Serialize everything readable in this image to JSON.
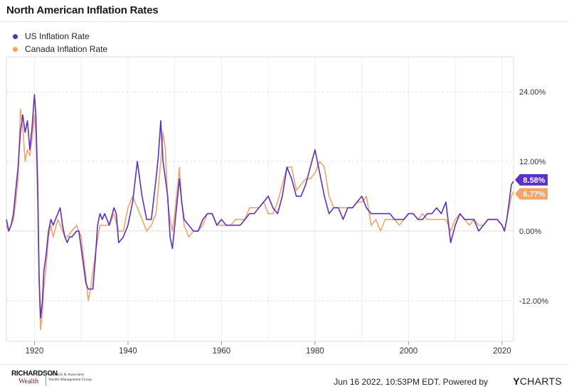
{
  "header": {
    "title": "North American Inflation Rates"
  },
  "colors": {
    "us": "#5b2fc9",
    "canada": "#f4a469"
  },
  "chart_data": {
    "type": "line",
    "title": "North American Inflation Rates",
    "xlabel": "",
    "ylabel": "",
    "xlim": [
      1914,
      2022.45
    ],
    "ylim": [
      -19,
      30
    ],
    "x_ticks": [
      "1920",
      "1940",
      "1960",
      "1980",
      "2000",
      "2020"
    ],
    "y_ticks": [
      "24.00%",
      "12.00%",
      "0.00%",
      "-12.00%"
    ],
    "legend_position": "top-left",
    "grid": true,
    "end_labels": [
      "8.58%",
      "6.77%"
    ],
    "series": [
      {
        "name": "US Inflation Rate",
        "color": "#5b2fc9",
        "points": [
          [
            1914,
            2
          ],
          [
            1914.5,
            0
          ],
          [
            1915,
            1
          ],
          [
            1915.5,
            3
          ],
          [
            1916,
            7
          ],
          [
            1916.5,
            11
          ],
          [
            1917,
            17
          ],
          [
            1917.5,
            20
          ],
          [
            1918,
            17
          ],
          [
            1918.5,
            19
          ],
          [
            1919,
            14
          ],
          [
            1919.5,
            18
          ],
          [
            1920,
            23.5
          ],
          [
            1920.3,
            20
          ],
          [
            1920.7,
            8
          ],
          [
            1921,
            -8
          ],
          [
            1921.3,
            -15
          ],
          [
            1921.7,
            -12
          ],
          [
            1922,
            -7
          ],
          [
            1922.5,
            -4
          ],
          [
            1923,
            0
          ],
          [
            1923.5,
            2
          ],
          [
            1924,
            1
          ],
          [
            1925,
            3
          ],
          [
            1925.5,
            4
          ],
          [
            1926,
            1
          ],
          [
            1926.5,
            -1
          ],
          [
            1927,
            -2
          ],
          [
            1927.5,
            -1
          ],
          [
            1928,
            -1
          ],
          [
            1929,
            0
          ],
          [
            1929.5,
            0
          ],
          [
            1930,
            -3
          ],
          [
            1931,
            -9
          ],
          [
            1931.5,
            -10
          ],
          [
            1932,
            -10
          ],
          [
            1932.5,
            -10
          ],
          [
            1933,
            -5
          ],
          [
            1933.5,
            1
          ],
          [
            1934,
            3
          ],
          [
            1934.5,
            2
          ],
          [
            1935,
            3
          ],
          [
            1936,
            1
          ],
          [
            1937,
            4
          ],
          [
            1937.5,
            3
          ],
          [
            1938,
            -2
          ],
          [
            1939,
            -1
          ],
          [
            1940,
            1
          ],
          [
            1941,
            5
          ],
          [
            1942,
            12
          ],
          [
            1942.5,
            9
          ],
          [
            1943,
            6
          ],
          [
            1944,
            2
          ],
          [
            1945,
            2
          ],
          [
            1946,
            9
          ],
          [
            1946.5,
            13
          ],
          [
            1947,
            19
          ],
          [
            1947.5,
            12
          ],
          [
            1948,
            9
          ],
          [
            1948.5,
            6
          ],
          [
            1949,
            -1
          ],
          [
            1949.5,
            -3
          ],
          [
            1950,
            1
          ],
          [
            1951,
            9
          ],
          [
            1951.5,
            5
          ],
          [
            1952,
            2
          ],
          [
            1953,
            1
          ],
          [
            1954,
            0
          ],
          [
            1955,
            0
          ],
          [
            1956,
            2
          ],
          [
            1957,
            3
          ],
          [
            1958,
            3
          ],
          [
            1959,
            1
          ],
          [
            1960,
            2
          ],
          [
            1961,
            1
          ],
          [
            1962,
            1
          ],
          [
            1963,
            1
          ],
          [
            1964,
            1
          ],
          [
            1965,
            2
          ],
          [
            1966,
            3
          ],
          [
            1967,
            3
          ],
          [
            1968,
            4
          ],
          [
            1969,
            5
          ],
          [
            1970,
            6
          ],
          [
            1971,
            4
          ],
          [
            1972,
            3
          ],
          [
            1973,
            6
          ],
          [
            1974,
            11
          ],
          [
            1975,
            9
          ],
          [
            1976,
            6
          ],
          [
            1977,
            6
          ],
          [
            1978,
            8
          ],
          [
            1979,
            11
          ],
          [
            1980,
            14
          ],
          [
            1981,
            10
          ],
          [
            1982,
            6
          ],
          [
            1983,
            3
          ],
          [
            1984,
            4
          ],
          [
            1985,
            4
          ],
          [
            1986,
            2
          ],
          [
            1987,
            4
          ],
          [
            1988,
            4
          ],
          [
            1989,
            5
          ],
          [
            1990,
            6
          ],
          [
            1991,
            4
          ],
          [
            1992,
            3
          ],
          [
            1993,
            3
          ],
          [
            1994,
            3
          ],
          [
            1995,
            3
          ],
          [
            1996,
            3
          ],
          [
            1997,
            2
          ],
          [
            1998,
            2
          ],
          [
            1999,
            2
          ],
          [
            2000,
            3
          ],
          [
            2001,
            3
          ],
          [
            2002,
            2
          ],
          [
            2003,
            2
          ],
          [
            2004,
            3
          ],
          [
            2005,
            3
          ],
          [
            2006,
            4
          ],
          [
            2007,
            3
          ],
          [
            2008,
            5
          ],
          [
            2009,
            -2
          ],
          [
            2010,
            1
          ],
          [
            2011,
            3
          ],
          [
            2012,
            2
          ],
          [
            2013,
            2
          ],
          [
            2014,
            2
          ],
          [
            2015,
            0
          ],
          [
            2016,
            1
          ],
          [
            2017,
            2
          ],
          [
            2018,
            2
          ],
          [
            2019,
            2
          ],
          [
            2020,
            1
          ],
          [
            2020.5,
            0
          ],
          [
            2021,
            2
          ],
          [
            2021.5,
            5
          ],
          [
            2022,
            8
          ],
          [
            2022.45,
            8.58
          ]
        ]
      },
      {
        "name": "Canada Inflation Rate",
        "color": "#f4a469",
        "points": [
          [
            1914,
            1
          ],
          [
            1914.5,
            0
          ],
          [
            1915,
            1
          ],
          [
            1915.5,
            2
          ],
          [
            1916,
            5
          ],
          [
            1916.5,
            9
          ],
          [
            1917,
            21
          ],
          [
            1917.5,
            18
          ],
          [
            1918,
            12
          ],
          [
            1918.5,
            14
          ],
          [
            1919,
            13
          ],
          [
            1919.5,
            16
          ],
          [
            1920,
            20
          ],
          [
            1920.3,
            17
          ],
          [
            1920.7,
            5
          ],
          [
            1921,
            -9
          ],
          [
            1921.3,
            -17
          ],
          [
            1921.7,
            -14
          ],
          [
            1922,
            -10
          ],
          [
            1922.5,
            -6
          ],
          [
            1923,
            -1
          ],
          [
            1923.5,
            1
          ],
          [
            1924,
            -1
          ],
          [
            1925,
            2
          ],
          [
            1926,
            0
          ],
          [
            1926.5,
            -1
          ],
          [
            1927,
            -1
          ],
          [
            1928,
            0
          ],
          [
            1929,
            1
          ],
          [
            1930,
            -1
          ],
          [
            1931,
            -8
          ],
          [
            1931.5,
            -12
          ],
          [
            1932,
            -10
          ],
          [
            1933,
            -4
          ],
          [
            1934,
            1
          ],
          [
            1935,
            1
          ],
          [
            1936,
            1
          ],
          [
            1937,
            3
          ],
          [
            1938,
            0
          ],
          [
            1939,
            0
          ],
          [
            1940,
            4
          ],
          [
            1941,
            6
          ],
          [
            1942,
            4
          ],
          [
            1943,
            2
          ],
          [
            1944,
            0
          ],
          [
            1945,
            1
          ],
          [
            1946,
            3
          ],
          [
            1947,
            12
          ],
          [
            1947.5,
            17
          ],
          [
            1948,
            14
          ],
          [
            1948.5,
            5
          ],
          [
            1949,
            2
          ],
          [
            1949.5,
            0
          ],
          [
            1950,
            3
          ],
          [
            1951,
            11
          ],
          [
            1951.5,
            5
          ],
          [
            1952,
            1
          ],
          [
            1953,
            -1
          ],
          [
            1954,
            0
          ],
          [
            1955,
            0
          ],
          [
            1956,
            1
          ],
          [
            1957,
            3
          ],
          [
            1958,
            3
          ],
          [
            1959,
            1
          ],
          [
            1960,
            1
          ],
          [
            1961,
            1
          ],
          [
            1962,
            1
          ],
          [
            1963,
            2
          ],
          [
            1964,
            2
          ],
          [
            1965,
            2
          ],
          [
            1966,
            4
          ],
          [
            1967,
            4
          ],
          [
            1968,
            4
          ],
          [
            1969,
            5
          ],
          [
            1970,
            3
          ],
          [
            1971,
            3
          ],
          [
            1972,
            5
          ],
          [
            1973,
            8
          ],
          [
            1974,
            11
          ],
          [
            1975,
            11
          ],
          [
            1976,
            7
          ],
          [
            1977,
            8
          ],
          [
            1978,
            9
          ],
          [
            1979,
            9
          ],
          [
            1980,
            10
          ],
          [
            1981,
            12
          ],
          [
            1982,
            11
          ],
          [
            1983,
            6
          ],
          [
            1984,
            4
          ],
          [
            1985,
            4
          ],
          [
            1986,
            4
          ],
          [
            1987,
            4
          ],
          [
            1988,
            4
          ],
          [
            1989,
            5
          ],
          [
            1990,
            5
          ],
          [
            1991,
            6
          ],
          [
            1992,
            1
          ],
          [
            1993,
            2
          ],
          [
            1994,
            0
          ],
          [
            1995,
            2
          ],
          [
            1996,
            2
          ],
          [
            1997,
            2
          ],
          [
            1998,
            1
          ],
          [
            1999,
            2
          ],
          [
            2000,
            3
          ],
          [
            2001,
            3
          ],
          [
            2002,
            2
          ],
          [
            2003,
            3
          ],
          [
            2004,
            2
          ],
          [
            2005,
            2
          ],
          [
            2006,
            2
          ],
          [
            2007,
            2
          ],
          [
            2008,
            2
          ],
          [
            2009,
            0
          ],
          [
            2010,
            2
          ],
          [
            2011,
            3
          ],
          [
            2012,
            2
          ],
          [
            2013,
            1
          ],
          [
            2014,
            2
          ],
          [
            2015,
            1
          ],
          [
            2016,
            1
          ],
          [
            2017,
            2
          ],
          [
            2018,
            2
          ],
          [
            2019,
            2
          ],
          [
            2020,
            1
          ],
          [
            2020.5,
            0
          ],
          [
            2021,
            2
          ],
          [
            2021.5,
            4
          ],
          [
            2022,
            6
          ],
          [
            2022.45,
            6.77
          ]
        ]
      }
    ]
  },
  "footer": {
    "logo_main": "RICHARDSON",
    "logo_sub": "Wealth",
    "firm_line1": "Chernick & Associates",
    "firm_line2": "Wealth Management Group",
    "timestamp": "Jun 16 2022, 10:53PM EDT.",
    "powered_by": "Powered by",
    "brand_y": "Y",
    "brand_rest": "CHARTS"
  }
}
